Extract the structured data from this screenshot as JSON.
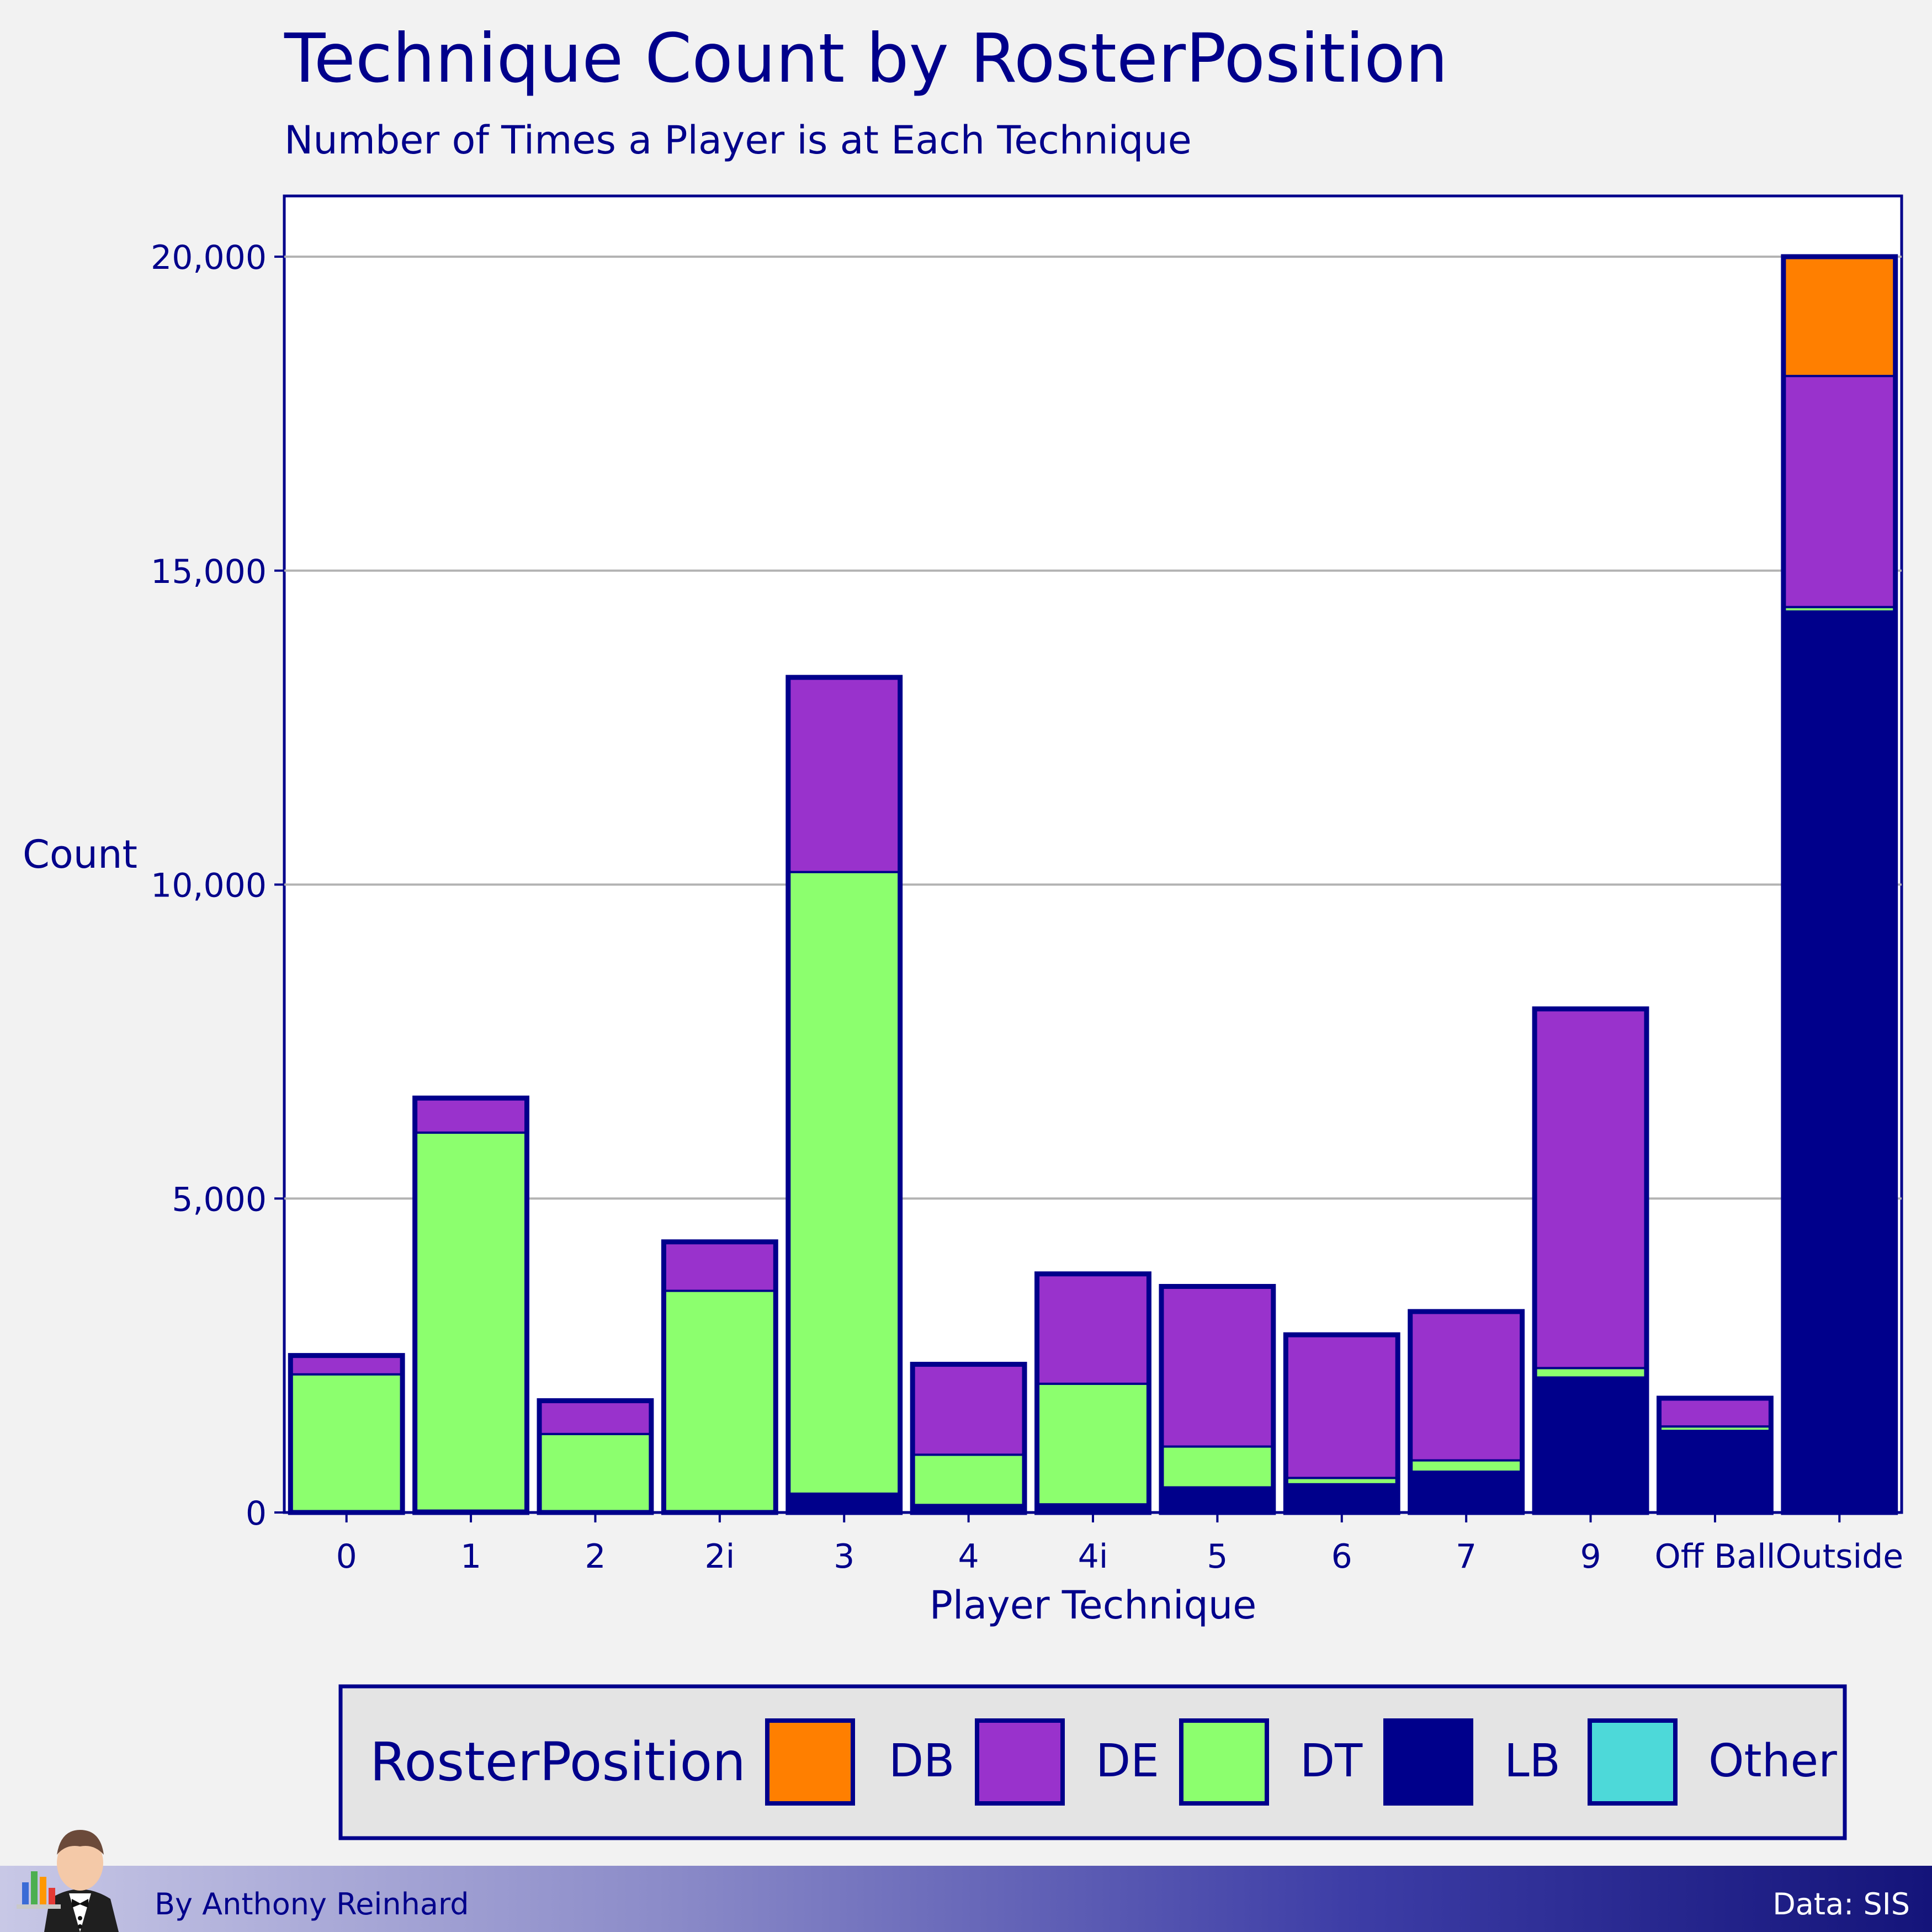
{
  "title": "Technique Count by RosterPosition",
  "subtitle": "Number of Times a Player is at Each Technique",
  "footer": {
    "author": "By Anthony Reinhard",
    "source": "Data: SIS"
  },
  "colors": {
    "DB": "#ff7f00",
    "DE": "#9932cc",
    "DT": "#8cff6e",
    "LB": "#00008b",
    "Other": "#4dd9d9",
    "outline": "#00008b",
    "background": "#f2f2f2",
    "panel": "#ffffff",
    "grid": "#b3b3b3"
  },
  "chart_data": {
    "type": "bar",
    "stacked": true,
    "title": "Technique Count by RosterPosition",
    "subtitle": "Number of Times a Player is at Each Technique",
    "xlabel": "Player Technique",
    "ylabel": "Count",
    "ylim": [
      0,
      21000
    ],
    "yticks": [
      0,
      5000,
      10000,
      15000,
      20000
    ],
    "ytick_labels": [
      "0",
      "5,000",
      "10,000",
      "15,000",
      "20,000"
    ],
    "grid": true,
    "legend_title": "RosterPosition",
    "legend_position": "bottom",
    "categories": [
      "0",
      "1",
      "2",
      "2i",
      "3",
      "4",
      "4i",
      "5",
      "6",
      "7",
      "9",
      "Off Ball",
      "Outside"
    ],
    "series": [
      {
        "name": "LB",
        "values": [
          20,
          30,
          20,
          20,
          300,
          120,
          130,
          400,
          450,
          650,
          2150,
          1300,
          14350
        ]
      },
      {
        "name": "DT",
        "values": [
          2180,
          6020,
          1230,
          3510,
          9900,
          800,
          1920,
          650,
          100,
          180,
          150,
          70,
          70
        ]
      },
      {
        "name": "DE",
        "values": [
          300,
          550,
          530,
          780,
          3100,
          1440,
          1750,
          2550,
          2280,
          2370,
          5720,
          450,
          3680
        ]
      },
      {
        "name": "Other",
        "values": [
          0,
          0,
          0,
          0,
          0,
          0,
          0,
          0,
          0,
          0,
          0,
          0,
          0
        ]
      },
      {
        "name": "DB",
        "values": [
          0,
          0,
          0,
          0,
          0,
          0,
          0,
          0,
          0,
          0,
          0,
          0,
          1900
        ]
      }
    ],
    "legend_order": [
      "DB",
      "DE",
      "DT",
      "LB",
      "Other"
    ]
  }
}
